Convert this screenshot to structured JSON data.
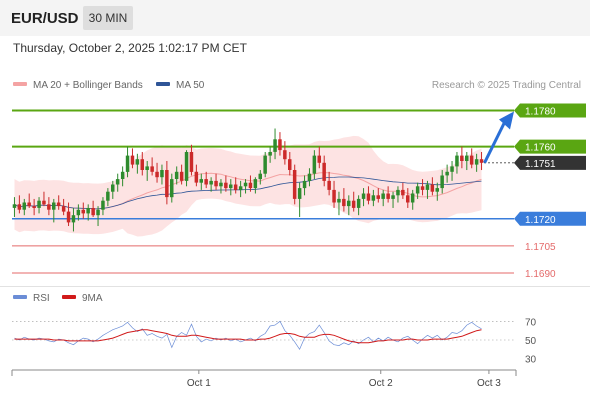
{
  "header": {
    "symbol": "EUR/USD",
    "timeframe": "30 MIN"
  },
  "datetime": "Thursday, October 2, 2025 1:02:17 PM CET",
  "legend": {
    "ma20_bb": {
      "label": "MA 20 + Bollinger Bands",
      "color": "#f4a3a3"
    },
    "ma50": {
      "label": "MA 50",
      "color": "#2f5597"
    }
  },
  "credit": "Research © 2025 Trading Central",
  "rsi_legend": {
    "rsi": {
      "label": "RSI",
      "color": "#6b8dd6"
    },
    "ma9": {
      "label": "9MA",
      "color": "#d11a1a"
    }
  },
  "colors": {
    "up": "#2e8b2e",
    "down": "#cc2a2a",
    "green_level": "#5aa612",
    "blue_level": "#3a7ddb",
    "red_level": "#e46a6a",
    "price_tag": "#333333",
    "band_fill": "#fde3e3",
    "ma20": "#f4a3a3",
    "ma50": "#2f5597",
    "arrow": "#2a6fd6"
  },
  "chart_data": [
    {
      "type": "candlestick",
      "symbol": "EUR/USD",
      "timeframe": "30 MIN",
      "ylim": [
        1.1685,
        1.1788
      ],
      "levels": [
        {
          "value": 1.178,
          "label": "1.1780",
          "kind": "resistance"
        },
        {
          "value": 1.176,
          "label": "1.1760",
          "kind": "resistance"
        },
        {
          "value": 1.1751,
          "label": "1.1751",
          "kind": "last_price"
        },
        {
          "value": 1.172,
          "label": "1.1720",
          "kind": "pivot"
        },
        {
          "value": 1.1705,
          "label": "1.1705",
          "kind": "support"
        },
        {
          "value": 1.169,
          "label": "1.1690",
          "kind": "support"
        }
      ],
      "x_ticks": [
        "Oct 1",
        "Oct 2",
        "Oct 3"
      ],
      "x_tick_index": [
        38,
        75,
        97
      ],
      "bar_count": 96,
      "ohlc": [
        [
          1.1726,
          1.1732,
          1.1721,
          1.1728
        ],
        [
          1.1728,
          1.1733,
          1.1723,
          1.1725
        ],
        [
          1.1725,
          1.1731,
          1.1722,
          1.1729
        ],
        [
          1.1729,
          1.1734,
          1.1726,
          1.1727
        ],
        [
          1.1727,
          1.1731,
          1.1722,
          1.1726
        ],
        [
          1.1726,
          1.1732,
          1.1723,
          1.173
        ],
        [
          1.173,
          1.1735,
          1.1727,
          1.1728
        ],
        [
          1.1728,
          1.1732,
          1.1722,
          1.1725
        ],
        [
          1.1725,
          1.1731,
          1.1718,
          1.1729
        ],
        [
          1.1729,
          1.1733,
          1.1725,
          1.1727
        ],
        [
          1.1727,
          1.1731,
          1.1722,
          1.1724
        ],
        [
          1.1724,
          1.1729,
          1.1716,
          1.1718
        ],
        [
          1.1718,
          1.1726,
          1.1713,
          1.1722
        ],
        [
          1.1722,
          1.1728,
          1.1719,
          1.1725
        ],
        [
          1.1725,
          1.1729,
          1.172,
          1.1723
        ],
        [
          1.1723,
          1.1728,
          1.1719,
          1.1726
        ],
        [
          1.1726,
          1.173,
          1.1721,
          1.1722
        ],
        [
          1.1722,
          1.1727,
          1.1716,
          1.1725
        ],
        [
          1.1725,
          1.1732,
          1.1722,
          1.173
        ],
        [
          1.173,
          1.1737,
          1.1727,
          1.1735
        ],
        [
          1.1735,
          1.1741,
          1.1731,
          1.1739
        ],
        [
          1.1739,
          1.1745,
          1.1735,
          1.1742
        ],
        [
          1.1742,
          1.1749,
          1.1738,
          1.1746
        ],
        [
          1.1746,
          1.176,
          1.1743,
          1.1755
        ],
        [
          1.1755,
          1.1759,
          1.1748,
          1.175
        ],
        [
          1.175,
          1.1756,
          1.1745,
          1.1753
        ],
        [
          1.1753,
          1.1757,
          1.1744,
          1.1747
        ],
        [
          1.1747,
          1.1752,
          1.1741,
          1.1749
        ],
        [
          1.1749,
          1.1754,
          1.1744,
          1.1746
        ],
        [
          1.1746,
          1.1751,
          1.174,
          1.1743
        ],
        [
          1.1743,
          1.175,
          1.1739,
          1.1747
        ],
        [
          1.1747,
          1.1752,
          1.1728,
          1.1732
        ],
        [
          1.1732,
          1.1745,
          1.1729,
          1.1742
        ],
        [
          1.1742,
          1.1749,
          1.1739,
          1.1746
        ],
        [
          1.1746,
          1.175,
          1.1739,
          1.1741
        ],
        [
          1.1741,
          1.1758,
          1.1738,
          1.1757
        ],
        [
          1.1757,
          1.1761,
          1.1744,
          1.1746
        ],
        [
          1.1746,
          1.175,
          1.1738,
          1.174
        ],
        [
          1.174,
          1.1745,
          1.1736,
          1.1742
        ],
        [
          1.1742,
          1.1746,
          1.1737,
          1.1739
        ],
        [
          1.1739,
          1.1743,
          1.1735,
          1.1741
        ],
        [
          1.1741,
          1.1745,
          1.1736,
          1.1738
        ],
        [
          1.1738,
          1.1742,
          1.1734,
          1.174
        ],
        [
          1.174,
          1.1744,
          1.1735,
          1.1737
        ],
        [
          1.1737,
          1.1742,
          1.1733,
          1.1739
        ],
        [
          1.1739,
          1.1743,
          1.1734,
          1.1736
        ],
        [
          1.1736,
          1.1741,
          1.1732,
          1.1738
        ],
        [
          1.1738,
          1.1742,
          1.1734,
          1.174
        ],
        [
          1.174,
          1.1744,
          1.1735,
          1.1737
        ],
        [
          1.1737,
          1.1743,
          1.1734,
          1.1742
        ],
        [
          1.1742,
          1.1747,
          1.1739,
          1.1745
        ],
        [
          1.1745,
          1.1757,
          1.1743,
          1.1755
        ],
        [
          1.1755,
          1.176,
          1.1751,
          1.1757
        ],
        [
          1.1757,
          1.177,
          1.1753,
          1.1764
        ],
        [
          1.1764,
          1.1768,
          1.1755,
          1.1758
        ],
        [
          1.1758,
          1.1763,
          1.175,
          1.1753
        ],
        [
          1.1753,
          1.1757,
          1.1744,
          1.1747
        ],
        [
          1.1747,
          1.175,
          1.1728,
          1.1731
        ],
        [
          1.1731,
          1.174,
          1.1721,
          1.1737
        ],
        [
          1.1737,
          1.1744,
          1.1733,
          1.1741
        ],
        [
          1.1741,
          1.1748,
          1.1738,
          1.1745
        ],
        [
          1.1745,
          1.1758,
          1.1742,
          1.1755
        ],
        [
          1.1755,
          1.176,
          1.1748,
          1.1751
        ],
        [
          1.1751,
          1.1755,
          1.1738,
          1.1741
        ],
        [
          1.1741,
          1.1746,
          1.1733,
          1.1736
        ],
        [
          1.1736,
          1.1741,
          1.1726,
          1.1729
        ],
        [
          1.1729,
          1.1735,
          1.1722,
          1.1731
        ],
        [
          1.1731,
          1.1737,
          1.1724,
          1.1727
        ],
        [
          1.1727,
          1.1733,
          1.1722,
          1.173
        ],
        [
          1.173,
          1.1735,
          1.1724,
          1.1726
        ],
        [
          1.1726,
          1.1733,
          1.1722,
          1.1731
        ],
        [
          1.1731,
          1.1737,
          1.1727,
          1.1734
        ],
        [
          1.1734,
          1.1738,
          1.1728,
          1.173
        ],
        [
          1.173,
          1.1736,
          1.1727,
          1.1733
        ],
        [
          1.1733,
          1.1737,
          1.1729,
          1.1731
        ],
        [
          1.1731,
          1.1736,
          1.1727,
          1.1734
        ],
        [
          1.1734,
          1.1738,
          1.1729,
          1.1731
        ],
        [
          1.1731,
          1.1735,
          1.1726,
          1.1733
        ],
        [
          1.1733,
          1.1738,
          1.1729,
          1.1736
        ],
        [
          1.1736,
          1.174,
          1.1731,
          1.1733
        ],
        [
          1.1733,
          1.1737,
          1.1726,
          1.1729
        ],
        [
          1.1729,
          1.1736,
          1.1725,
          1.1734
        ],
        [
          1.1734,
          1.174,
          1.1731,
          1.1738
        ],
        [
          1.1738,
          1.1742,
          1.1733,
          1.1736
        ],
        [
          1.1736,
          1.1741,
          1.1731,
          1.1739
        ],
        [
          1.1739,
          1.1743,
          1.1733,
          1.1735
        ],
        [
          1.1735,
          1.174,
          1.173,
          1.1737
        ],
        [
          1.1737,
          1.1747,
          1.1734,
          1.1744
        ],
        [
          1.1744,
          1.175,
          1.174,
          1.1746
        ],
        [
          1.1746,
          1.1752,
          1.1741,
          1.1749
        ],
        [
          1.1749,
          1.1757,
          1.1745,
          1.1755
        ],
        [
          1.1755,
          1.176,
          1.1748,
          1.1752
        ],
        [
          1.1752,
          1.1757,
          1.1747,
          1.1755
        ],
        [
          1.1755,
          1.1759,
          1.1748,
          1.175
        ],
        [
          1.175,
          1.1756,
          1.1746,
          1.1753
        ],
        [
          1.1753,
          1.1757,
          1.1747,
          1.1751
        ]
      ],
      "projection": {
        "from": 1.1751,
        "to": 1.178
      }
    },
    {
      "type": "line",
      "name": "RSI panel",
      "ylim": [
        20,
        80
      ],
      "y_ticks": [
        70,
        50,
        30
      ],
      "reference_lines": [
        70,
        50
      ],
      "series": [
        {
          "name": "RSI",
          "values": [
            52,
            50,
            53,
            51,
            50,
            52,
            51,
            49,
            48,
            51,
            50,
            47,
            45,
            49,
            52,
            51,
            48,
            51,
            55,
            58,
            61,
            63,
            65,
            69,
            63,
            59,
            62,
            55,
            57,
            54,
            52,
            56,
            42,
            54,
            58,
            55,
            67,
            54,
            48,
            51,
            49,
            52,
            50,
            52,
            49,
            51,
            48,
            50,
            52,
            49,
            54,
            57,
            65,
            66,
            70,
            60,
            55,
            48,
            40,
            52,
            57,
            59,
            66,
            58,
            49,
            45,
            44,
            47,
            45,
            49,
            46,
            50,
            53,
            48,
            52,
            49,
            53,
            50,
            48,
            52,
            54,
            50,
            46,
            51,
            55,
            52,
            55,
            50,
            53,
            58,
            57,
            60,
            66,
            69,
            65,
            62
          ]
        },
        {
          "name": "9MA",
          "values": [
            51,
            51,
            51,
            51,
            51,
            51,
            51,
            51,
            50,
            50,
            50,
            49,
            49,
            49,
            49,
            49,
            49,
            49,
            50,
            51,
            52,
            54,
            56,
            58,
            59,
            60,
            61,
            61,
            60,
            59,
            58,
            57,
            55,
            54,
            54,
            54,
            55,
            55,
            54,
            53,
            52,
            51,
            51,
            51,
            51,
            51,
            51,
            50,
            50,
            50,
            51,
            51,
            52,
            54,
            56,
            57,
            57,
            56,
            54,
            53,
            53,
            53,
            55,
            56,
            56,
            55,
            53,
            51,
            49,
            48,
            47,
            47,
            47,
            48,
            49,
            49,
            50,
            50,
            50,
            50,
            51,
            51,
            50,
            50,
            50,
            51,
            51,
            51,
            51,
            52,
            53,
            54,
            56,
            58,
            60,
            61
          ]
        }
      ]
    }
  ]
}
